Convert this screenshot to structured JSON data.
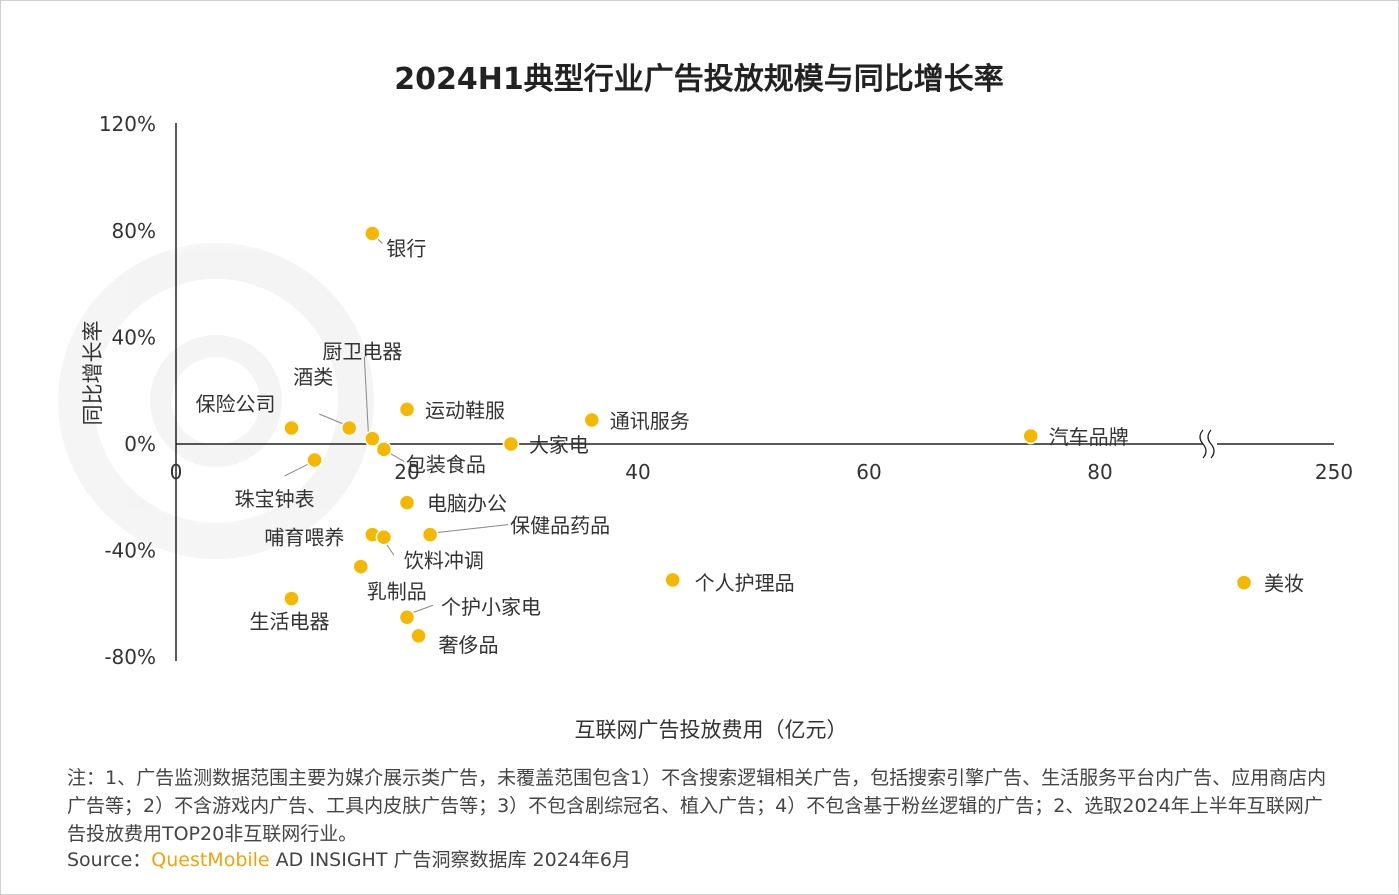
{
  "chart_data": {
    "type": "scatter",
    "title": "2024H1典型行业广告投放规模与同比增长率",
    "xlabel": "互联网广告投放费用（亿元）",
    "ylabel": "同比增长率",
    "x_ticks": [
      "0",
      "20",
      "40",
      "60",
      "80",
      "250"
    ],
    "y_ticks": [
      "120%",
      "80%",
      "40%",
      "0%",
      "-40%",
      "-80%"
    ],
    "xlim": [
      0,
      100
    ],
    "ylim": [
      -80,
      120
    ],
    "x_axis_break": true,
    "grid": false,
    "legend": "none",
    "point_color": "#f5b700",
    "points": [
      {
        "label": "银行",
        "x": 17,
        "y": 79
      },
      {
        "label": "厨卫电器",
        "x": 17,
        "y": 2
      },
      {
        "label": "酒类",
        "x": 15,
        "y": 6
      },
      {
        "label": "保险公司",
        "x": 10,
        "y": 6
      },
      {
        "label": "运动鞋服",
        "x": 20,
        "y": 13
      },
      {
        "label": "通讯服务",
        "x": 36,
        "y": 9
      },
      {
        "label": "大家电",
        "x": 29,
        "y": 0
      },
      {
        "label": "包装食品",
        "x": 18,
        "y": -2
      },
      {
        "label": "汽车品牌",
        "x": 74,
        "y": 3
      },
      {
        "label": "珠宝钟表",
        "x": 12,
        "y": -6
      },
      {
        "label": "电脑办公",
        "x": 20,
        "y": -22
      },
      {
        "label": "保健品药品",
        "x": 22,
        "y": -34
      },
      {
        "label": "哺育喂养",
        "x": 17,
        "y": -34
      },
      {
        "label": "饮料冲调",
        "x": 18,
        "y": -35
      },
      {
        "label": "乳制品",
        "x": 16,
        "y": -46
      },
      {
        "label": "生活电器",
        "x": 10,
        "y": -58
      },
      {
        "label": "个护小家电",
        "x": 20,
        "y": -65
      },
      {
        "label": "奢侈品",
        "x": 21,
        "y": -72
      },
      {
        "label": "个人护理品",
        "x": 43,
        "y": -51
      },
      {
        "label": "美妆",
        "x": 245,
        "y": -52
      }
    ]
  },
  "notes": {
    "footnote": "注：1、广告监测数据范围主要为媒介展示类广告，未覆盖范围包含1）不含搜索逻辑相关广告，包括搜索引擎广告、生活服务平台内广告、应用商店内广告等；2）不含游戏内广告、工具内皮肤广告等；3）不包含剧综冠名、植入广告；4）不包含基于粉丝逻辑的广告；2、选取2024年上半年互联网广告投放费用TOP20非互联网行业。",
    "source_prefix": "Source：",
    "source_brand": "QuestMobile",
    "source_rest": " AD INSIGHT 广告洞察数据库 2024年6月"
  }
}
